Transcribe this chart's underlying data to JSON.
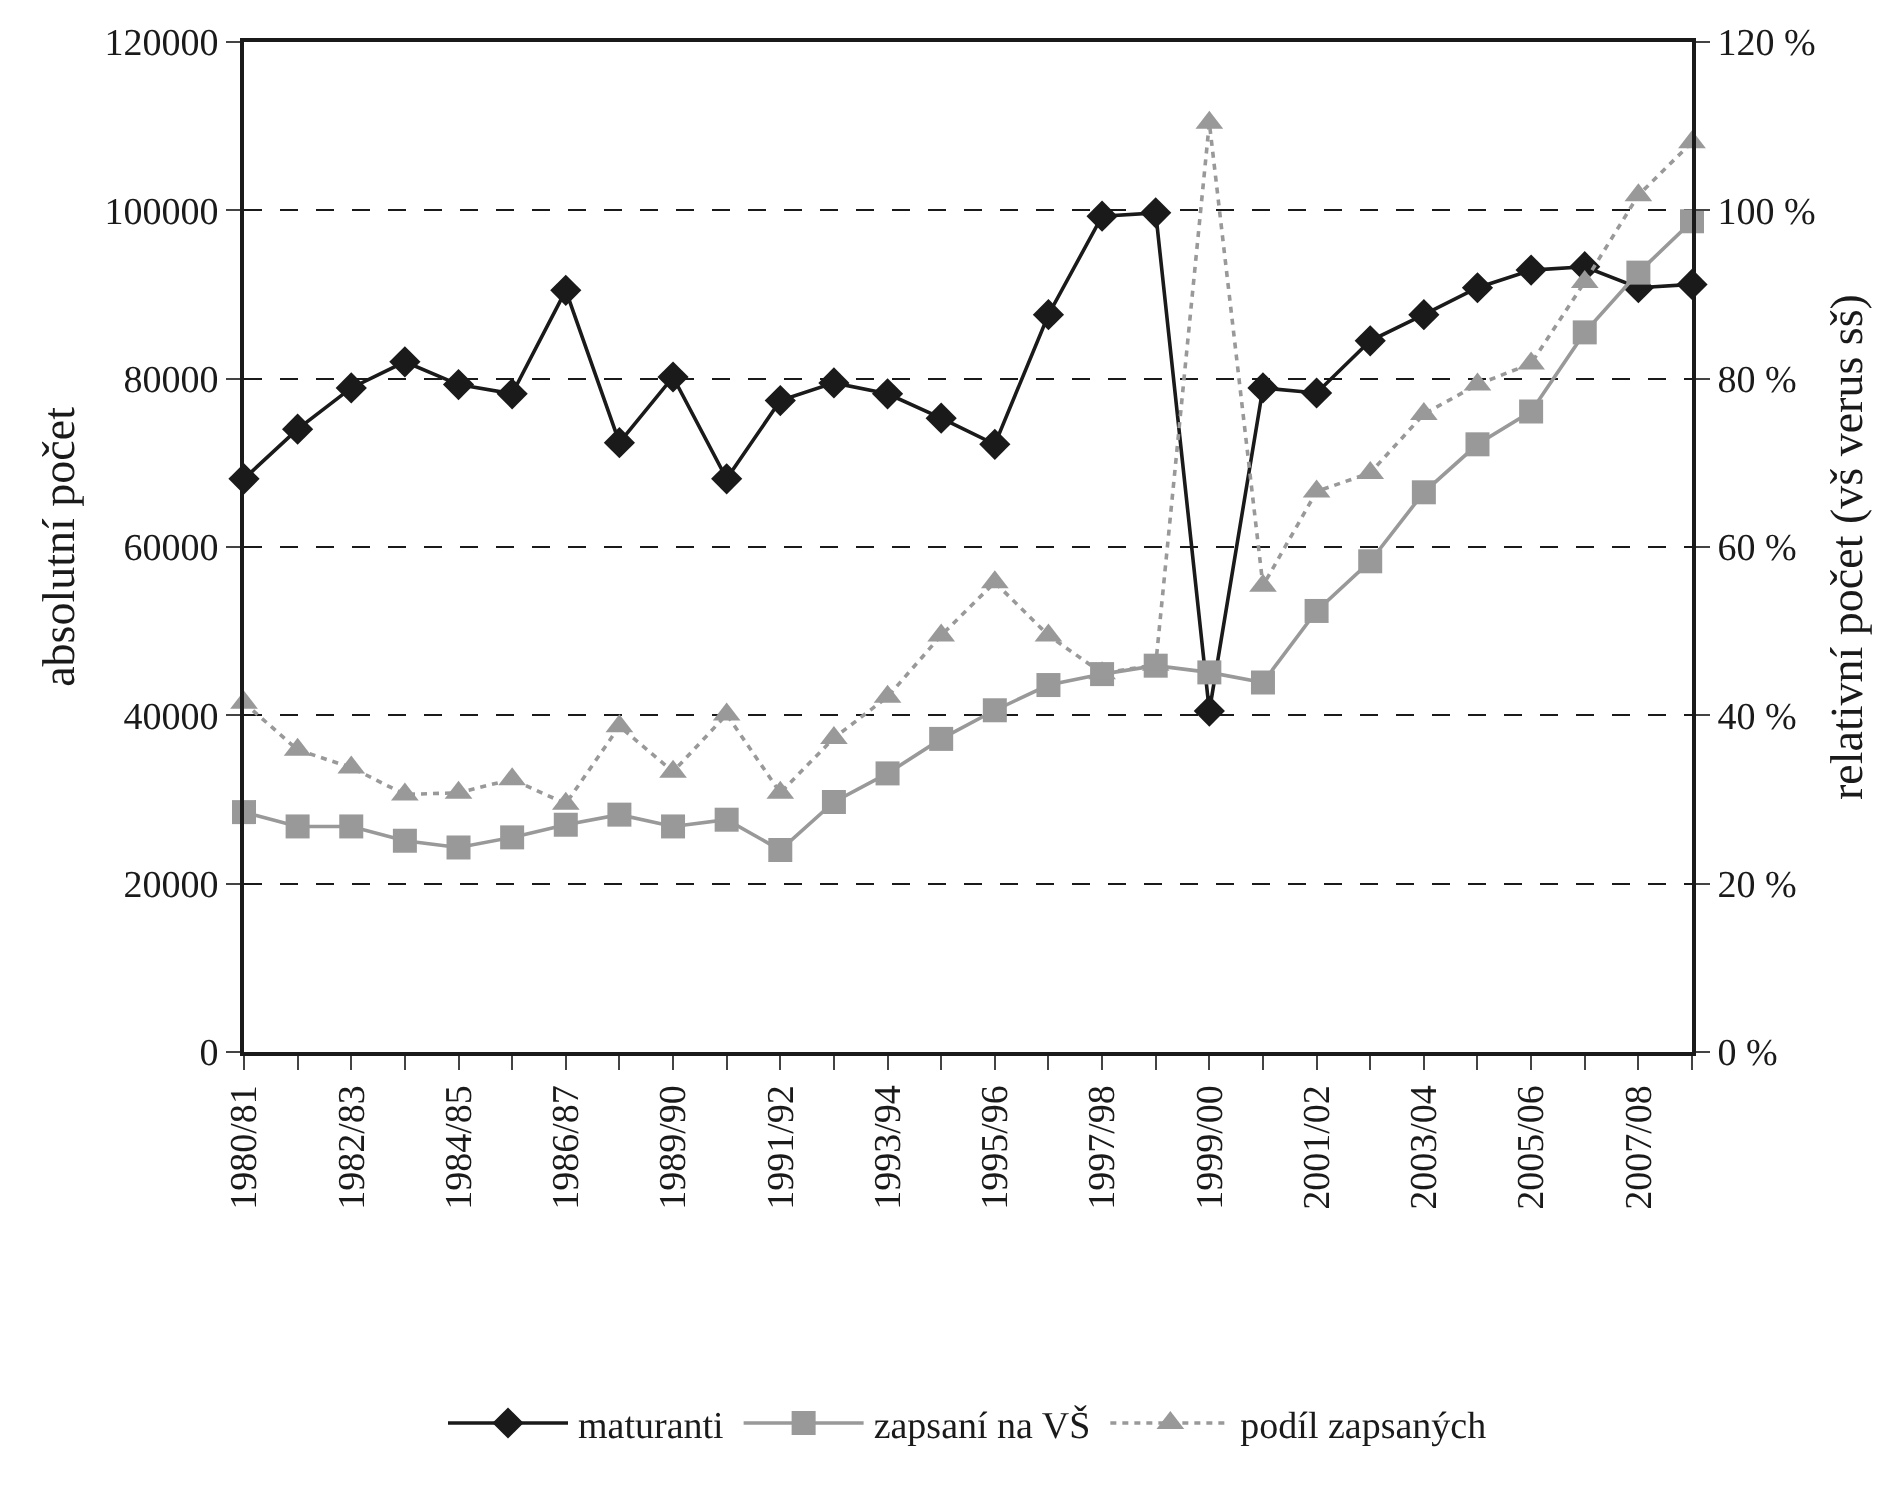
{
  "chart_data": {
    "type": "line",
    "categories": [
      "1980/81",
      null,
      "1982/83",
      null,
      "1984/85",
      null,
      "1986/87",
      null,
      "1989/90",
      null,
      "1991/92",
      null,
      "1993/94",
      null,
      "1995/96",
      null,
      "1997/98",
      null,
      "1999/00",
      null,
      "2001/02",
      null,
      "2003/04",
      null,
      "2005/06",
      null,
      "2007/08",
      null
    ],
    "ylabel": "absolutní počet",
    "y2label": "relativní počet (vš verus sš)",
    "ylim": [
      0,
      120000
    ],
    "yticks": [
      0,
      20000,
      40000,
      60000,
      80000,
      100000,
      120000
    ],
    "y2lim": [
      0,
      120
    ],
    "y2ticks": [
      {
        "value": 0,
        "label": "0 %"
      },
      {
        "value": 20,
        "label": "20 %"
      },
      {
        "value": 40,
        "label": "40 %"
      },
      {
        "value": 60,
        "label": "60 %"
      },
      {
        "value": 80,
        "label": "80 %"
      },
      {
        "value": 100,
        "label": "100 %"
      },
      {
        "value": 120,
        "label": "120 %"
      }
    ],
    "grid": "y",
    "legend": "bottom",
    "series": [
      {
        "name": "maturanti",
        "color": "#1a1a1a",
        "marker": "diamond",
        "line_style": "solid",
        "values": [
          68100,
          74000,
          78900,
          82000,
          79300,
          78200,
          90500,
          72400,
          80200,
          68100,
          77400,
          79500,
          78200,
          75300,
          72200,
          87600,
          99300,
          99700,
          40500,
          78900,
          78300,
          84500,
          87600,
          90800,
          92900,
          93300,
          90800,
          91200
        ]
      },
      {
        "name": "zapsaní na VŠ",
        "color": "#999999",
        "marker": "square",
        "line_style": "solid",
        "values": [
          28500,
          26800,
          26800,
          25100,
          24300,
          25500,
          27000,
          28200,
          26800,
          27600,
          24000,
          29700,
          33100,
          37200,
          40600,
          43600,
          44900,
          45900,
          45100,
          43900,
          52400,
          58300,
          66500,
          72200,
          76100,
          85500,
          92600,
          98700
        ]
      },
      {
        "name": "podíl zapsaných",
        "color": "#999999",
        "marker": "triangle",
        "line_style": "dotted",
        "axis": "y2",
        "values": [
          41.5,
          35.9,
          33.8,
          30.6,
          30.8,
          32.4,
          29.5,
          38.7,
          33.3,
          40.1,
          30.8,
          37.3,
          42.2,
          49.5,
          55.8,
          49.5,
          45.0,
          46.0,
          110.4,
          55.4,
          66.6,
          68.8,
          75.8,
          79.3,
          81.8,
          91.5,
          101.8,
          108.1
        ]
      }
    ]
  }
}
